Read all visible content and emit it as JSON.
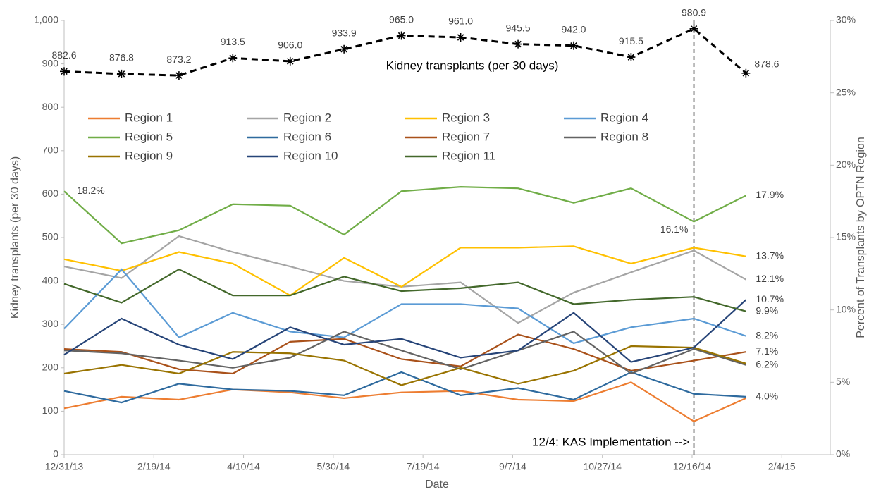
{
  "chart_data": {
    "type": "line",
    "x_label": "Date",
    "y_label": "Kidney transplants (per 30 days)",
    "y2_label": "Percent of Transplants by OPTN Region",
    "annotation": "12/4: KAS Implementation -->",
    "x": [
      "12/31/13",
      "2/1/14",
      "3/5/14",
      "4/4/14",
      "5/6/14",
      "6/5/14",
      "7/7/14",
      "8/9/14",
      "9/10/14",
      "10/11/14",
      "11/12/14",
      "12/17/14",
      "1/15/15"
    ],
    "xlim": [
      "12/31/13",
      "3/3/15"
    ],
    "xticks": [
      "12/31/13",
      "2/19/14",
      "4/10/14",
      "5/30/14",
      "7/19/14",
      "9/7/14",
      "10/27/14",
      "12/16/14",
      "2/4/15"
    ],
    "ylim": [
      0,
      1000
    ],
    "yticks": [
      0,
      100,
      200,
      300,
      400,
      500,
      600,
      700,
      800,
      900,
      {
        "value": 1000,
        "label": "1,000"
      }
    ],
    "y2lim": [
      0,
      30
    ],
    "y2ticks": [
      {
        "value": 0,
        "label": "0%"
      },
      {
        "value": 5,
        "label": "5%"
      },
      {
        "value": 10,
        "label": "10%"
      },
      {
        "value": 15,
        "label": "15%"
      },
      {
        "value": 20,
        "label": "20%"
      },
      {
        "value": 25,
        "label": "25%"
      },
      {
        "value": 30,
        "label": "30%"
      }
    ],
    "series": [
      {
        "name": "Kidney transplants (per 30 days)",
        "color": "#000000",
        "dashed": true,
        "marker": "asterisk",
        "values": [
          882.6,
          876.8,
          873.2,
          913.5,
          906.0,
          933.9,
          965.0,
          961.0,
          945.5,
          942.0,
          915.5,
          980.9,
          878.6
        ],
        "value_labels": [
          "882.6",
          "876.8",
          "873.2",
          "913.5",
          "906.0",
          "933.9",
          "965.0",
          "961.0",
          "945.5",
          "942.0",
          "915.5",
          "980.9",
          "878.6"
        ]
      },
      {
        "name": "Region 1",
        "color": "#ED7D31",
        "axis": "y2",
        "values": [
          3.2,
          4.0,
          3.8,
          4.5,
          4.3,
          3.9,
          4.3,
          4.4,
          3.8,
          3.7,
          5.0,
          2.3,
          3.9
        ]
      },
      {
        "name": "Region 2",
        "color": "#A5A5A5",
        "axis": "y2",
        "values": [
          13.0,
          12.2,
          15.1,
          14.0,
          13.0,
          12.0,
          11.6,
          11.9,
          9.1,
          11.2,
          12.6,
          14.1,
          12.1
        ],
        "value_labels": [
          null,
          null,
          null,
          null,
          null,
          null,
          null,
          null,
          null,
          null,
          null,
          null,
          "12.1%"
        ]
      },
      {
        "name": "Region 3",
        "color": "#FFC000",
        "axis": "y2",
        "values": [
          13.5,
          12.7,
          14.0,
          13.2,
          11.0,
          13.6,
          11.6,
          14.3,
          14.3,
          14.4,
          13.2,
          14.3,
          13.7
        ],
        "value_labels": [
          null,
          null,
          null,
          null,
          null,
          null,
          null,
          null,
          null,
          null,
          null,
          null,
          "13.7%"
        ]
      },
      {
        "name": "Region 4",
        "color": "#5B9BD5",
        "axis": "y2",
        "values": [
          8.7,
          12.8,
          8.1,
          9.8,
          8.5,
          8.1,
          10.4,
          10.4,
          10.1,
          7.7,
          8.8,
          9.4,
          8.2
        ],
        "value_labels": [
          null,
          null,
          null,
          null,
          null,
          null,
          null,
          null,
          null,
          null,
          null,
          null,
          "8.2%"
        ]
      },
      {
        "name": "Region 5",
        "color": "#70AD47",
        "axis": "y2",
        "values": [
          18.2,
          14.6,
          15.5,
          17.3,
          17.2,
          15.2,
          18.2,
          18.5,
          18.4,
          17.4,
          18.4,
          16.1,
          17.9
        ],
        "value_labels": [
          "18.2%",
          null,
          null,
          null,
          null,
          null,
          null,
          null,
          null,
          null,
          null,
          "16.1%",
          "17.9%"
        ]
      },
      {
        "name": "Region 6",
        "color": "#2E6A9E",
        "axis": "y2",
        "values": [
          4.4,
          3.6,
          4.9,
          4.5,
          4.4,
          4.1,
          5.7,
          4.1,
          4.6,
          3.8,
          5.7,
          4.2,
          4.0
        ],
        "value_labels": [
          null,
          null,
          null,
          null,
          null,
          null,
          null,
          null,
          null,
          null,
          null,
          null,
          "4.0%"
        ]
      },
      {
        "name": "Region 7",
        "color": "#A9511A",
        "axis": "y2",
        "values": [
          7.3,
          7.1,
          5.9,
          5.6,
          7.8,
          8.0,
          6.6,
          6.1,
          8.3,
          7.3,
          5.8,
          6.5,
          7.1
        ],
        "value_labels": [
          null,
          null,
          null,
          null,
          null,
          null,
          null,
          null,
          null,
          null,
          null,
          null,
          "7.1%"
        ]
      },
      {
        "name": "Region 8",
        "color": "#636363",
        "axis": "y2",
        "values": [
          7.2,
          7.0,
          6.5,
          6.0,
          6.7,
          8.5,
          7.2,
          5.9,
          7.2,
          8.5,
          5.6,
          7.3,
          6.2
        ],
        "value_labels": [
          null,
          null,
          null,
          null,
          null,
          null,
          null,
          null,
          null,
          null,
          null,
          null,
          "6.2%"
        ]
      },
      {
        "name": "Region 9",
        "color": "#997300",
        "axis": "y2",
        "values": [
          5.6,
          6.2,
          5.6,
          7.1,
          7.0,
          6.5,
          4.8,
          6.0,
          4.9,
          5.8,
          7.5,
          7.4,
          6.3
        ]
      },
      {
        "name": "Region 10",
        "color": "#264478",
        "axis": "y2",
        "values": [
          6.9,
          9.4,
          7.6,
          6.6,
          8.8,
          7.6,
          8.0,
          6.7,
          7.2,
          9.8,
          6.4,
          7.4,
          10.7
        ],
        "value_labels": [
          null,
          null,
          null,
          null,
          null,
          null,
          null,
          null,
          null,
          null,
          null,
          null,
          "10.7%"
        ]
      },
      {
        "name": "Region 11",
        "color": "#43682B",
        "axis": "y2",
        "values": [
          11.8,
          10.5,
          12.8,
          11.0,
          11.0,
          12.3,
          11.3,
          11.5,
          11.9,
          10.4,
          10.7,
          10.9,
          9.9
        ],
        "value_labels": [
          null,
          null,
          null,
          null,
          null,
          null,
          null,
          null,
          null,
          null,
          null,
          null,
          "9.9%"
        ]
      }
    ]
  }
}
